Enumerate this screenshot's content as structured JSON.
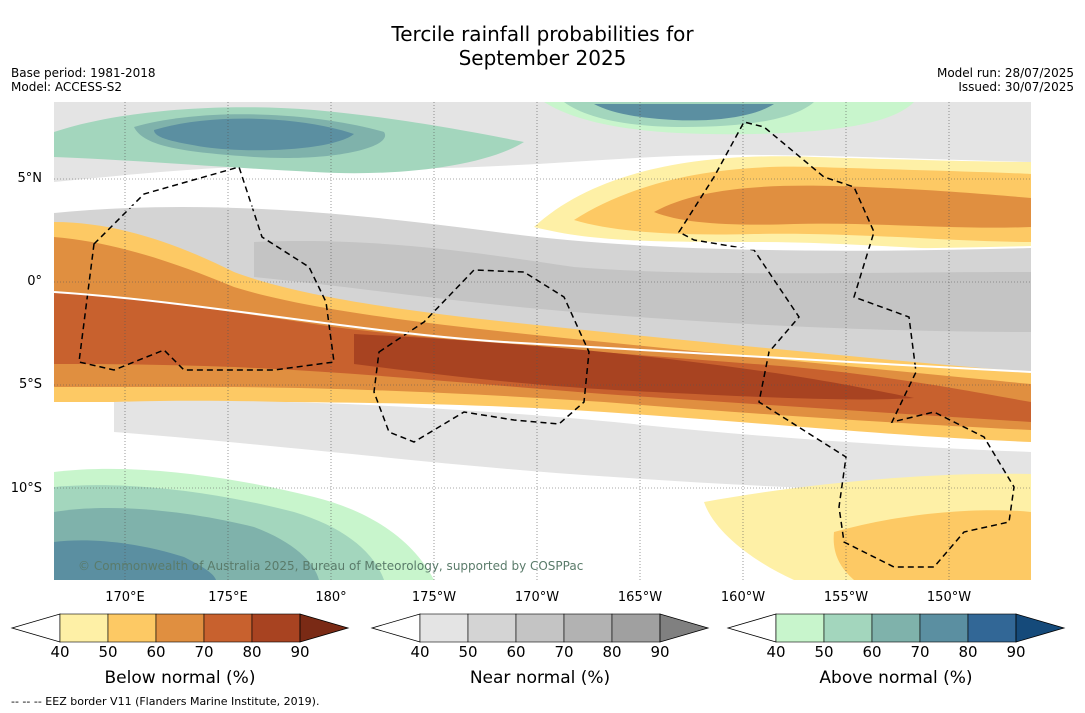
{
  "title_line1": "Tercile rainfall probabilities for",
  "title_line2": "September 2025",
  "base_period": "Base period: 1981-2018",
  "model": "Model: ACCESS-S2",
  "model_run": "Model run: 28/07/2025",
  "issued": "Issued: 30/07/2025",
  "lat_labels": [
    "5°N",
    "0°",
    "5°S",
    "10°S"
  ],
  "lon_labels": [
    "170°E",
    "175°E",
    "180°",
    "175°W",
    "170°W",
    "165°W",
    "160°W",
    "155°W",
    "150°W"
  ],
  "copyright": "© Commonwealth of Australia 2025, Bureau of Meteorology, supported by COSPPac",
  "footer": "-- -- -- EEZ border V11 (Flanders Marine Institute, 2019).",
  "legends": [
    {
      "title": "Below normal (%)",
      "ticks": [
        "40",
        "50",
        "60",
        "70",
        "80",
        "90"
      ],
      "colors": [
        "#fef0a6",
        "#fdc964",
        "#e08f40",
        "#c8612e",
        "#a84321",
        "#7a2a15"
      ]
    },
    {
      "title": "Near normal (%)",
      "ticks": [
        "40",
        "50",
        "60",
        "70",
        "80",
        "90"
      ],
      "colors": [
        "#e4e4e4",
        "#d4d4d4",
        "#c4c4c4",
        "#b2b2b2",
        "#a0a0a0",
        "#808080"
      ]
    },
    {
      "title": "Above normal (%)",
      "ticks": [
        "40",
        "50",
        "60",
        "70",
        "80",
        "90"
      ],
      "colors": [
        "#c8f5cc",
        "#a3d6bd",
        "#7fb2ab",
        "#5b8fa1",
        "#326796",
        "#154a7a"
      ]
    }
  ]
}
